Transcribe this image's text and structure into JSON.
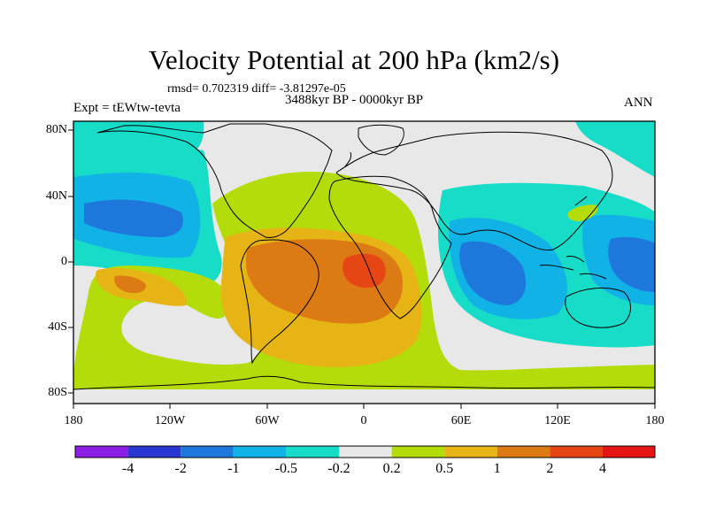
{
  "title": "Velocity Potential at 200 hPa (km2/s)",
  "stats_text": "rmsd= 0.702319 diff= -3.81297e-05",
  "period": "3488kyr BP - 0000kyr BP",
  "experiment": "Expt = tEWtw-tevta",
  "season": "ANN",
  "y_ticks": [
    "80N",
    "40N",
    "0",
    "40S",
    "80S"
  ],
  "x_ticks": [
    "180",
    "120W",
    "60W",
    "0",
    "60E",
    "120E",
    "180"
  ],
  "colorbar": {
    "labels": [
      "-4",
      "-2",
      "-1",
      "-0.5",
      "-0.2",
      "0.2",
      "0.5",
      "1",
      "2",
      "4"
    ],
    "colors": [
      "#8c1ee6",
      "#2a36d2",
      "#1e78dc",
      "#11b2e6",
      "#17dcc8",
      "#e8e8e8",
      "#b4dc0a",
      "#e6b414",
      "#dc7a14",
      "#e64614",
      "#e61414"
    ]
  },
  "palette": {
    "neutral": "#e8e8e8",
    "pos_1": "#b4dc0a",
    "pos_2": "#e6b414",
    "pos_3": "#dc7a14",
    "pos_4": "#e64614",
    "neg_1": "#17dcc8",
    "neg_2": "#11b2e6",
    "neg_3": "#1e78dc"
  }
}
